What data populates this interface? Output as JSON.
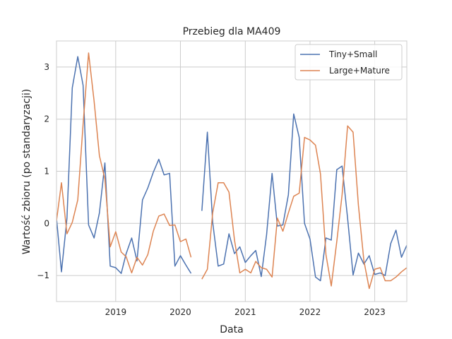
{
  "chart_data": {
    "type": "line",
    "title": "Przebieg dla MA409",
    "xlabel": "Data",
    "ylabel": "Wartość zbioru (po standaryzacji)",
    "xlim": [
      "2018-02-01",
      "2023-07-01"
    ],
    "ylim": [
      -1.5,
      3.5
    ],
    "x_ticks": [
      "2019",
      "2020",
      "2021",
      "2022",
      "2023"
    ],
    "y_ticks": [
      -1,
      0,
      1,
      2,
      3
    ],
    "y_tick_labels": [
      "−1",
      "0",
      "1",
      "2",
      "3"
    ],
    "grid": true,
    "legend_position": "upper right",
    "series": [
      {
        "name": "Tiny+Small",
        "color": "#4c72b0",
        "points": [
          [
            "2018-02-01",
            0.1
          ],
          [
            "2018-03-01",
            -0.93
          ],
          [
            "2018-04-01",
            0.1
          ],
          [
            "2018-05-01",
            2.6
          ],
          [
            "2018-06-01",
            3.2
          ],
          [
            "2018-07-01",
            2.65
          ],
          [
            "2018-08-01",
            -0.03
          ],
          [
            "2018-09-01",
            -0.28
          ],
          [
            "2018-10-01",
            0.2
          ],
          [
            "2018-11-01",
            1.16
          ],
          [
            "2018-12-01",
            -0.82
          ],
          [
            "2019-01-01",
            -0.85
          ],
          [
            "2019-02-01",
            -0.96
          ],
          [
            "2019-03-01",
            -0.58
          ],
          [
            "2019-04-01",
            -0.28
          ],
          [
            "2019-05-01",
            -0.72
          ],
          [
            "2019-06-01",
            0.45
          ],
          [
            "2019-07-01",
            0.68
          ],
          [
            "2019-08-01",
            0.98
          ],
          [
            "2019-09-01",
            1.23
          ],
          [
            "2019-10-01",
            0.93
          ],
          [
            "2019-11-01",
            0.96
          ],
          [
            "2019-12-01",
            -0.82
          ],
          [
            "2020-01-01",
            -0.62
          ],
          [
            "2020-02-01",
            -0.8
          ],
          [
            "2020-03-01",
            -0.96
          ],
          [
            "2020-04-01",
            null
          ],
          [
            "2020-05-01",
            0.24
          ],
          [
            "2020-06-01",
            1.75
          ],
          [
            "2020-07-01",
            0.02
          ],
          [
            "2020-08-01",
            -0.82
          ],
          [
            "2020-09-01",
            -0.78
          ],
          [
            "2020-10-01",
            -0.2
          ],
          [
            "2020-11-01",
            -0.58
          ],
          [
            "2020-12-01",
            -0.45
          ],
          [
            "2021-01-01",
            -0.75
          ],
          [
            "2021-02-01",
            -0.62
          ],
          [
            "2021-03-01",
            -0.52
          ],
          [
            "2021-04-01",
            -1.02
          ],
          [
            "2021-05-01",
            -0.22
          ],
          [
            "2021-06-01",
            0.96
          ],
          [
            "2021-07-01",
            -0.05
          ],
          [
            "2021-08-01",
            -0.03
          ],
          [
            "2021-09-01",
            0.55
          ],
          [
            "2021-10-01",
            2.1
          ],
          [
            "2021-11-01",
            1.65
          ],
          [
            "2021-12-01",
            0.0
          ],
          [
            "2022-01-01",
            -0.3
          ],
          [
            "2022-02-01",
            -1.03
          ],
          [
            "2022-03-01",
            -1.1
          ],
          [
            "2022-04-01",
            -0.28
          ],
          [
            "2022-05-01",
            -0.32
          ],
          [
            "2022-06-01",
            1.03
          ],
          [
            "2022-07-01",
            1.1
          ],
          [
            "2022-08-01",
            0.1
          ],
          [
            "2022-09-01",
            -0.99
          ],
          [
            "2022-10-01",
            -0.57
          ],
          [
            "2022-11-01",
            -0.78
          ],
          [
            "2022-12-01",
            -0.62
          ],
          [
            "2023-01-01",
            -0.98
          ],
          [
            "2023-02-01",
            -0.95
          ],
          [
            "2023-03-01",
            -1.0
          ],
          [
            "2023-04-01",
            -0.39
          ],
          [
            "2023-05-01",
            -0.13
          ],
          [
            "2023-06-01",
            -0.65
          ],
          [
            "2023-07-01",
            -0.42
          ]
        ]
      },
      {
        "name": "Large+Mature",
        "color": "#dd8452",
        "points": [
          [
            "2018-02-01",
            0.05
          ],
          [
            "2018-03-01",
            0.78
          ],
          [
            "2018-04-01",
            -0.2
          ],
          [
            "2018-05-01",
            0.02
          ],
          [
            "2018-06-01",
            0.45
          ],
          [
            "2018-07-01",
            1.9
          ],
          [
            "2018-08-01",
            3.27
          ],
          [
            "2018-09-01",
            2.35
          ],
          [
            "2018-10-01",
            1.3
          ],
          [
            "2018-11-01",
            0.85
          ],
          [
            "2018-12-01",
            -0.45
          ],
          [
            "2019-01-01",
            -0.16
          ],
          [
            "2019-02-01",
            -0.55
          ],
          [
            "2019-03-01",
            -0.64
          ],
          [
            "2019-04-01",
            -0.95
          ],
          [
            "2019-05-01",
            -0.65
          ],
          [
            "2019-06-01",
            -0.8
          ],
          [
            "2019-07-01",
            -0.6
          ],
          [
            "2019-08-01",
            -0.15
          ],
          [
            "2019-09-01",
            0.14
          ],
          [
            "2019-10-01",
            0.18
          ],
          [
            "2019-11-01",
            -0.04
          ],
          [
            "2019-12-01",
            -0.03
          ],
          [
            "2020-01-01",
            -0.35
          ],
          [
            "2020-02-01",
            -0.3
          ],
          [
            "2020-03-01",
            -0.65
          ],
          [
            "2020-04-01",
            null
          ],
          [
            "2020-05-01",
            -1.07
          ],
          [
            "2020-06-01",
            -0.88
          ],
          [
            "2020-07-01",
            0.2
          ],
          [
            "2020-08-01",
            0.78
          ],
          [
            "2020-09-01",
            0.78
          ],
          [
            "2020-10-01",
            0.6
          ],
          [
            "2020-11-01",
            -0.32
          ],
          [
            "2020-12-01",
            -0.95
          ],
          [
            "2021-01-01",
            -0.88
          ],
          [
            "2021-02-01",
            -0.95
          ],
          [
            "2021-03-01",
            -0.73
          ],
          [
            "2021-04-01",
            -0.85
          ],
          [
            "2021-05-01",
            -0.88
          ],
          [
            "2021-06-01",
            -1.03
          ],
          [
            "2021-07-01",
            0.1
          ],
          [
            "2021-08-01",
            -0.15
          ],
          [
            "2021-09-01",
            0.2
          ],
          [
            "2021-10-01",
            0.52
          ],
          [
            "2021-11-01",
            0.58
          ],
          [
            "2021-12-01",
            1.65
          ],
          [
            "2022-01-01",
            1.6
          ],
          [
            "2022-02-01",
            1.5
          ],
          [
            "2022-03-01",
            0.95
          ],
          [
            "2022-04-01",
            -0.6
          ],
          [
            "2022-05-01",
            -1.2
          ],
          [
            "2022-06-01",
            -0.35
          ],
          [
            "2022-07-01",
            0.55
          ],
          [
            "2022-08-01",
            1.87
          ],
          [
            "2022-09-01",
            1.75
          ],
          [
            "2022-10-01",
            0.35
          ],
          [
            "2022-11-01",
            -0.72
          ],
          [
            "2022-12-01",
            -1.25
          ],
          [
            "2023-01-01",
            -0.88
          ],
          [
            "2023-02-01",
            -0.85
          ],
          [
            "2023-03-01",
            -1.1
          ],
          [
            "2023-04-01",
            -1.1
          ],
          [
            "2023-05-01",
            -1.03
          ],
          [
            "2023-06-01",
            -0.93
          ],
          [
            "2023-07-01",
            -0.85
          ]
        ]
      }
    ]
  }
}
